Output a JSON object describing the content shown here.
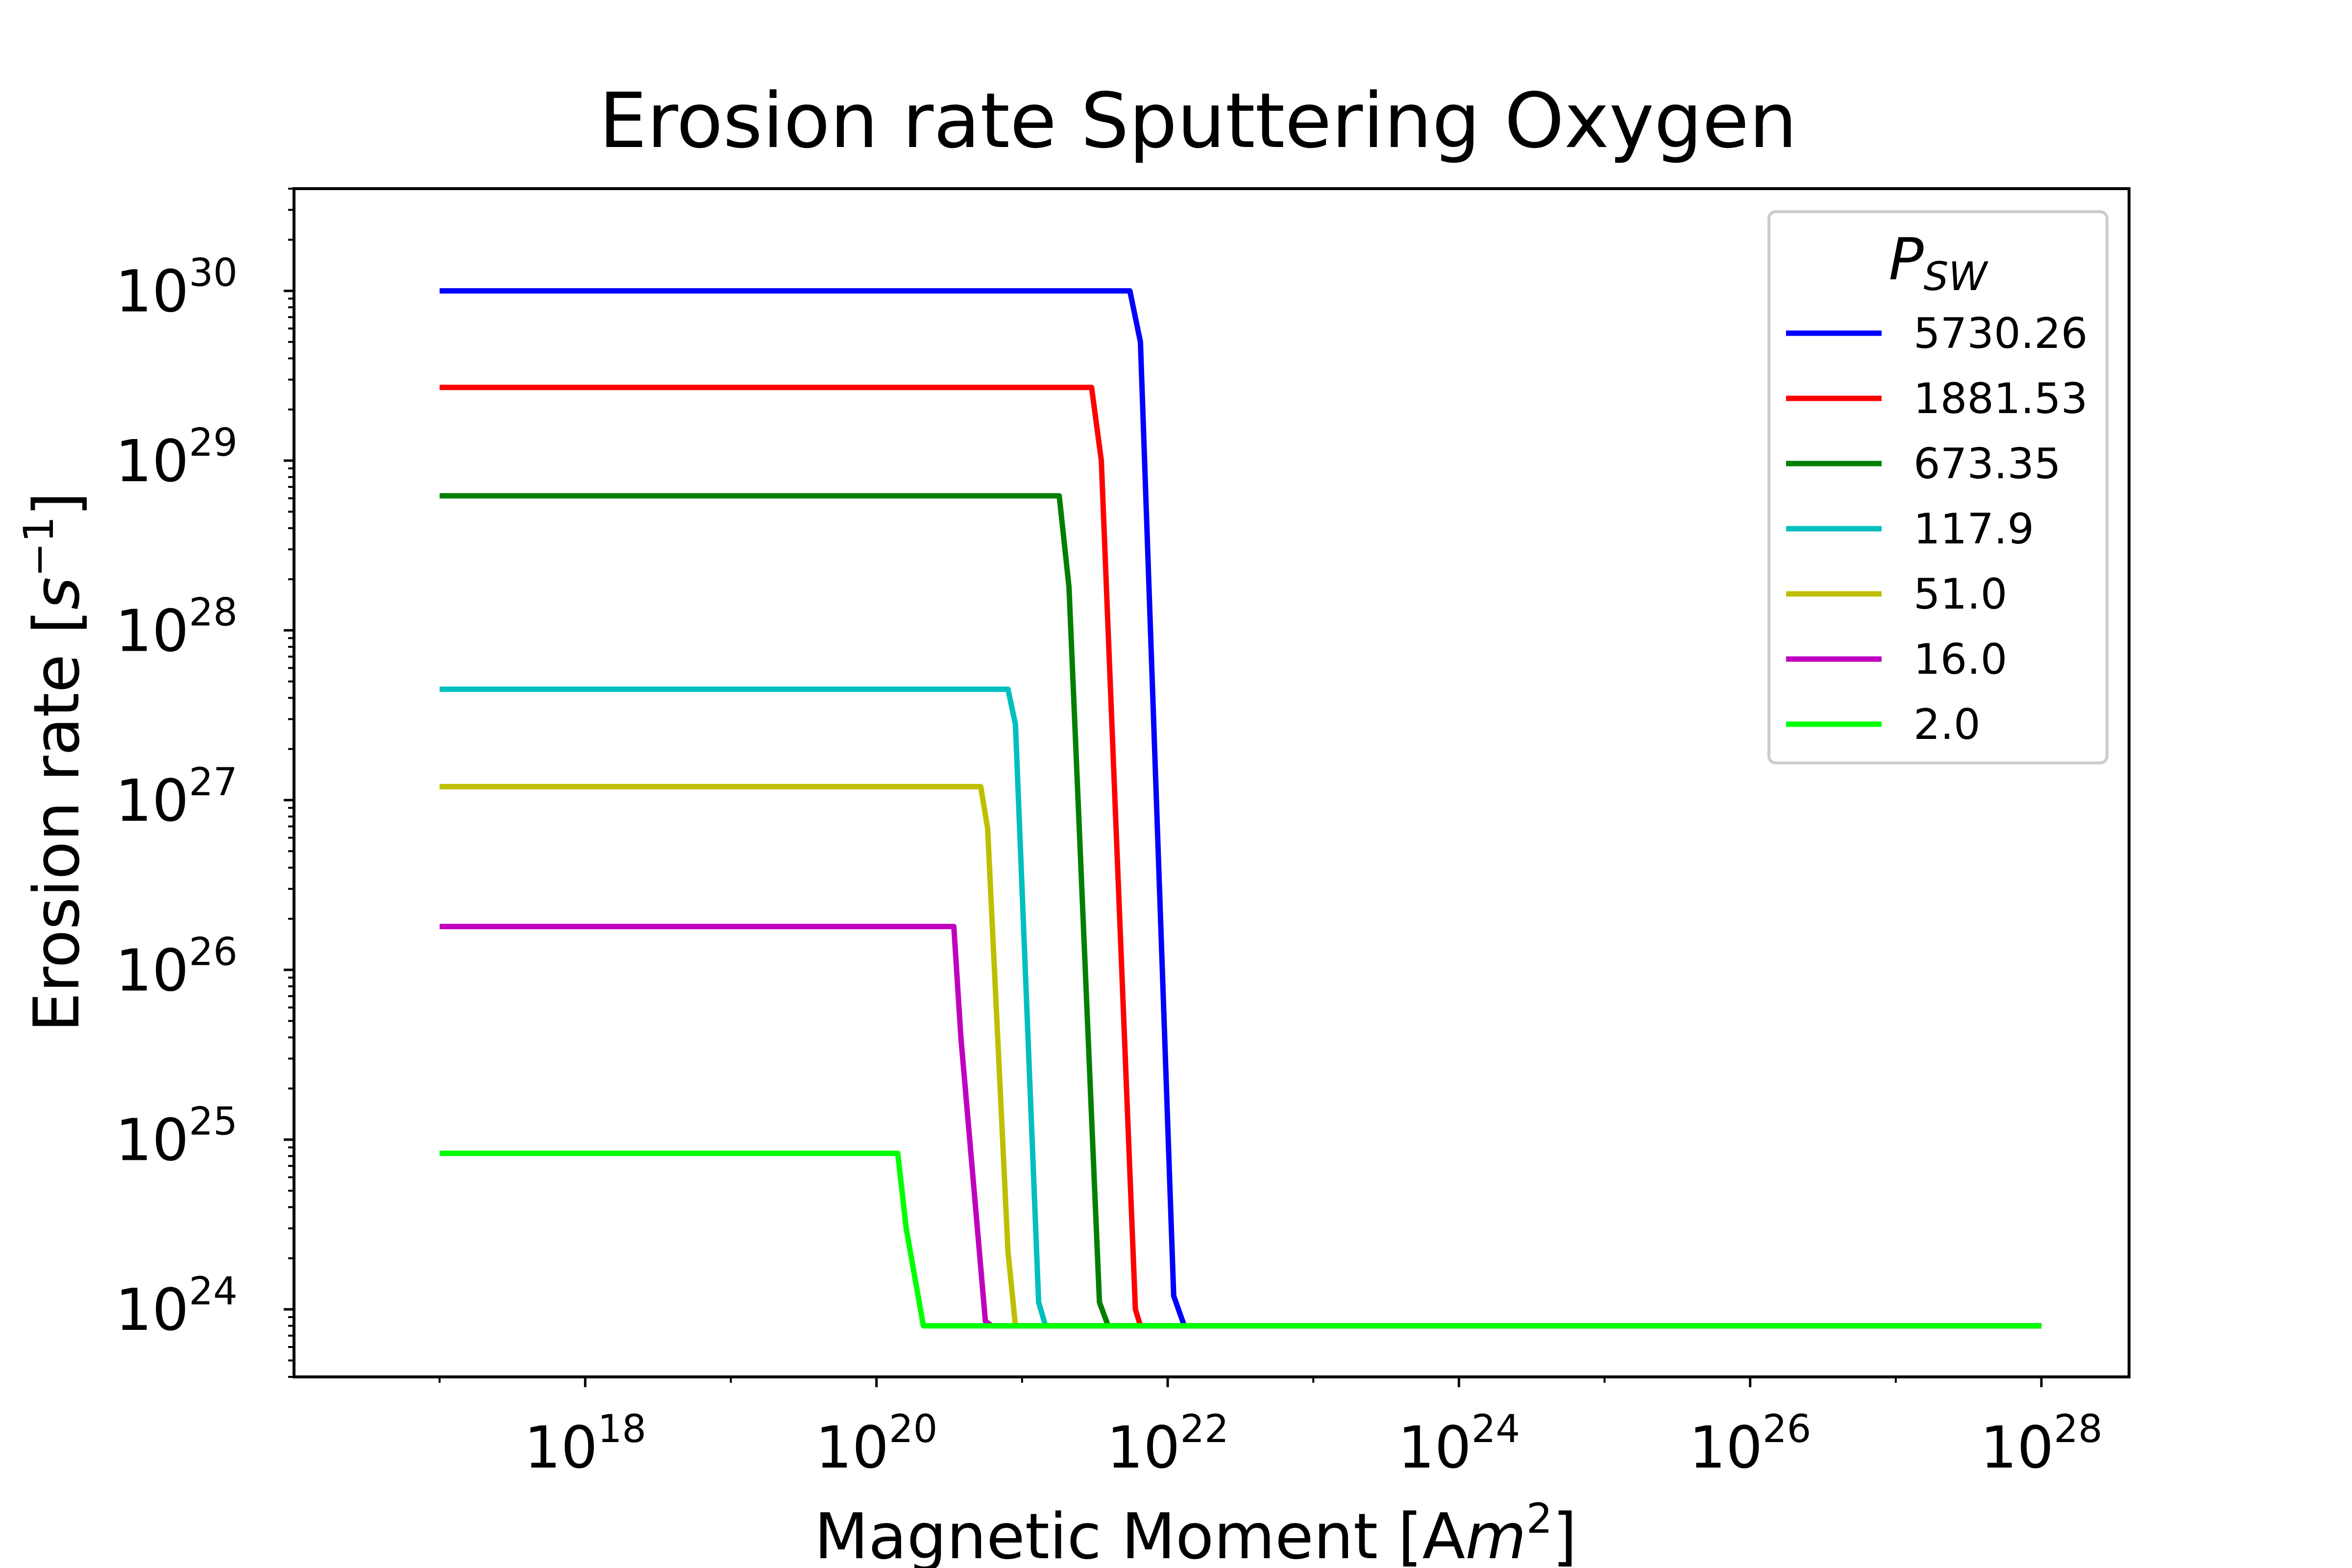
{
  "chart_data": {
    "type": "line",
    "title": "Erosion rate Sputtering Oxygen",
    "xlabel": {
      "prefix": "Magnetic Moment [A",
      "italic": "m",
      "sup": "2",
      "suffix": "]"
    },
    "ylabel": {
      "prefix": "Erosion rate [",
      "italic": "s",
      "sup": "−1",
      "suffix": "]"
    },
    "x_scale": "log",
    "y_scale": "log",
    "xlim": [
      1e+16,
      4e+28
    ],
    "ylim": [
      4e+23,
      4e+30
    ],
    "x_ticks": [
      {
        "base": "10",
        "exp": "18"
      },
      {
        "base": "10",
        "exp": "20"
      },
      {
        "base": "10",
        "exp": "22"
      },
      {
        "base": "10",
        "exp": "24"
      },
      {
        "base": "10",
        "exp": "26"
      },
      {
        "base": "10",
        "exp": "28"
      }
    ],
    "y_ticks": [
      {
        "base": "10",
        "exp": "24"
      },
      {
        "base": "10",
        "exp": "25"
      },
      {
        "base": "10",
        "exp": "26"
      },
      {
        "base": "10",
        "exp": "27"
      },
      {
        "base": "10",
        "exp": "28"
      },
      {
        "base": "10",
        "exp": "29"
      },
      {
        "base": "10",
        "exp": "30"
      }
    ],
    "grid": false,
    "legend": {
      "title": "P",
      "title_sub": "SW",
      "position": "top-right"
    },
    "series": [
      {
        "name": "5730.26",
        "color": "#0000ff",
        "x": [
          1e+17,
          5.5e+21,
          6.5e+21,
          1.1e+22,
          1.3e+22,
          1e+28
        ],
        "y": [
          1e+30,
          1e+30,
          5e+29,
          1.2e+24,
          8e+23,
          8e+23
        ]
      },
      {
        "name": "1881.53",
        "color": "#ff0000",
        "x": [
          1e+17,
          3e+21,
          3.5e+21,
          6e+21,
          6.5e+21,
          1e+28
        ],
        "y": [
          2.7e+29,
          2.7e+29,
          1e+29,
          1e+24,
          8e+23,
          8e+23
        ]
      },
      {
        "name": "673.35",
        "color": "#007f00",
        "x": [
          1e+17,
          1.8e+21,
          2.1e+21,
          3.4e+21,
          3.9e+21,
          1e+28
        ],
        "y": [
          6.2e+28,
          6.2e+28,
          1.8e+28,
          1.1e+24,
          8e+23,
          8e+23
        ]
      },
      {
        "name": "117.9",
        "color": "#00bfbf",
        "x": [
          1e+17,
          8e+20,
          9e+20,
          1.3e+21,
          1.45e+21,
          1e+28
        ],
        "y": [
          4.5e+27,
          4.5e+27,
          2.8e+27,
          1.1e+24,
          8e+23,
          8e+23
        ]
      },
      {
        "name": "51.0",
        "color": "#bfbf00",
        "x": [
          1e+17,
          5.2e+20,
          5.8e+20,
          8e+20,
          9e+20,
          1e+28
        ],
        "y": [
          1.2e+27,
          1.2e+27,
          6.8e+26,
          2.2e+24,
          8e+23,
          8e+23
        ]
      },
      {
        "name": "16.0",
        "color": "#bf00bf",
        "x": [
          1e+17,
          3.4e+20,
          3.8e+20,
          5.6e+20,
          6.2e+20,
          1e+28
        ],
        "y": [
          1.8e+26,
          1.8e+26,
          4e+25,
          8.5e+23,
          8e+23,
          8e+23
        ]
      },
      {
        "name": "2.0",
        "color": "#00ff00",
        "x": [
          1e+17,
          1.4e+20,
          1.6e+20,
          2.1e+20,
          1e+28
        ],
        "y": [
          8.3e+24,
          8.3e+24,
          3e+24,
          8e+23,
          8e+23
        ]
      }
    ]
  }
}
